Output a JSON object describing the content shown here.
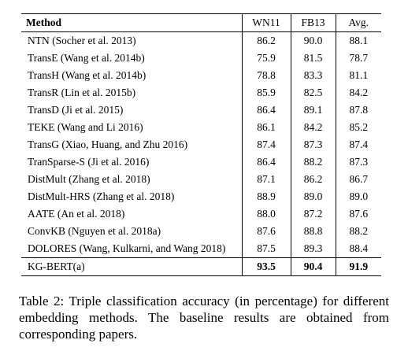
{
  "table": {
    "headers": [
      "Method",
      "WN11",
      "FB13",
      "Avg."
    ],
    "rows": [
      {
        "method": "NTN (Socher et al. 2013)",
        "wn11": "86.2",
        "fb13": "90.0",
        "avg": "88.1"
      },
      {
        "method": "TransE (Wang et al. 2014b)",
        "wn11": "75.9",
        "fb13": "81.5",
        "avg": "78.7"
      },
      {
        "method": "TransH (Wang et al. 2014b)",
        "wn11": "78.8",
        "fb13": "83.3",
        "avg": "81.1"
      },
      {
        "method": "TransR (Lin et al. 2015b)",
        "wn11": "85.9",
        "fb13": "82.5",
        "avg": "84.2"
      },
      {
        "method": "TransD (Ji et al. 2015)",
        "wn11": "86.4",
        "fb13": "89.1",
        "avg": "87.8"
      },
      {
        "method": "TEKE (Wang and Li 2016)",
        "wn11": "86.1",
        "fb13": "84.2",
        "avg": "85.2"
      },
      {
        "method": "TransG (Xiao, Huang, and Zhu 2016)",
        "wn11": "87.4",
        "fb13": "87.3",
        "avg": "87.4"
      },
      {
        "method": "TranSparse-S (Ji et al. 2016)",
        "wn11": "86.4",
        "fb13": "88.2",
        "avg": "87.3"
      },
      {
        "method": "DistMult (Zhang et al. 2018)",
        "wn11": "87.1",
        "fb13": "86.2",
        "avg": "86.7"
      },
      {
        "method": "DistMult-HRS (Zhang et al. 2018)",
        "wn11": "88.9",
        "fb13": "89.0",
        "avg": "89.0"
      },
      {
        "method": "AATE (An et al. 2018)",
        "wn11": "88.0",
        "fb13": "87.2",
        "avg": "87.6"
      },
      {
        "method": "ConvKB (Nguyen et al. 2018a)",
        "wn11": "87.6",
        "fb13": "88.8",
        "avg": "88.2"
      },
      {
        "method": "DOLORES (Wang, Kulkarni, and Wang 2018)",
        "wn11": "87.5",
        "fb13": "89.3",
        "avg": "88.4"
      },
      {
        "method": "KG-BERT(a)",
        "wn11": "93.5",
        "fb13": "90.4",
        "avg": "91.9"
      }
    ]
  },
  "caption": "Table 2: Triple classification accuracy (in percentage) for different embedding methods. The baseline results are obtained from corresponding papers."
}
